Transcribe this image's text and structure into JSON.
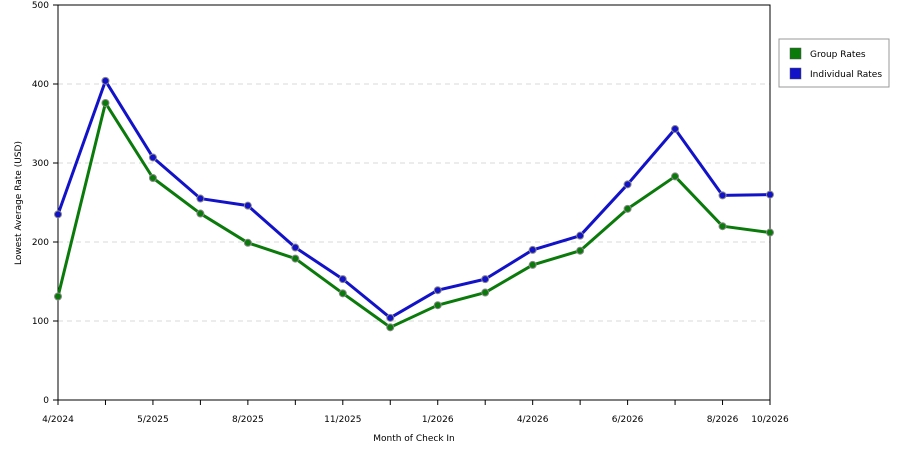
{
  "chart_data": {
    "type": "line",
    "title": "",
    "xlabel": "Month of Check In",
    "ylabel": "Lowest Average Rate (USD)",
    "ylim": [
      0,
      500
    ],
    "yticks": [
      0,
      100,
      200,
      300,
      400,
      500
    ],
    "grid": true,
    "legend_position": "right",
    "x_tick_labels": [
      "4/2024",
      "5/2025",
      "8/2025",
      "11/2025",
      "1/2026",
      "4/2026",
      "6/2026",
      "8/2026",
      "10/2026"
    ],
    "series": [
      {
        "name": "Group Rates",
        "color": "#0a7a0a",
        "values": [
          131,
          376,
          281,
          236,
          199,
          179,
          135,
          92,
          120,
          136,
          171,
          189,
          242,
          283,
          220,
          212
        ]
      },
      {
        "name": "Individual Rates",
        "color": "#1212c8",
        "values": [
          235,
          404,
          307,
          255,
          246,
          193,
          153,
          104,
          139,
          153,
          190,
          208,
          273,
          343,
          259,
          260
        ]
      }
    ]
  }
}
